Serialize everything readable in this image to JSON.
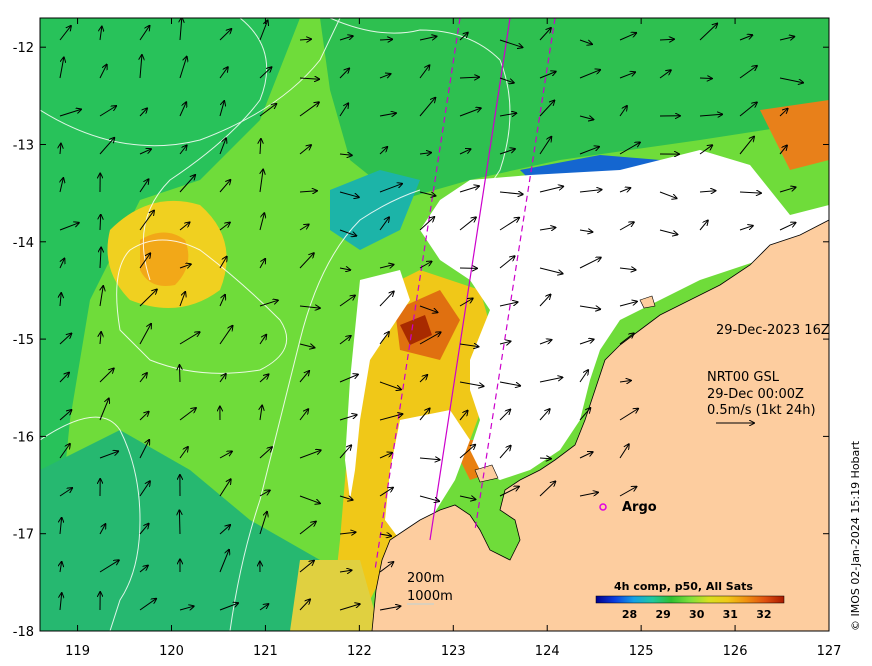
{
  "map": {
    "x_ticks": [
      "119",
      "120",
      "121",
      "122",
      "123",
      "124",
      "125",
      "126",
      "127"
    ],
    "y_ticks": [
      "-12",
      "-13",
      "-14",
      "-15",
      "-16",
      "-17",
      "-18"
    ],
    "colors": {
      "land": "#fdcd9f",
      "cloud_mask": "#ffffff",
      "sst_cool": "#27c06a",
      "sst_mid": "#6fdc3a",
      "sst_warm": "#f0d020",
      "sst_hot": "#f08a10",
      "sst_hottest": "#a02000",
      "altimeter_track": "#cc00cc",
      "contour": "#ffffff"
    }
  },
  "annotations": {
    "date": "29-Dec-2023 16Z",
    "current_source": "NRT00 GSL",
    "current_time": "29-Dec 00:00Z",
    "current_scale": "0.5m/s (1kt 24h)",
    "argo_label": "Argo",
    "contour_200": "200m",
    "contour_1000": "1000m"
  },
  "colorbar": {
    "title": "4h comp, p50, All Sats",
    "ticks": [
      "28",
      "29",
      "30",
      "31",
      "32"
    ],
    "colors": [
      "#00008c",
      "#0a3ce0",
      "#14a0e6",
      "#20c8a0",
      "#30c030",
      "#7ee03c",
      "#d8e020",
      "#f0c818",
      "#f09010",
      "#e05010",
      "#a81a00"
    ]
  },
  "credit": "© IMOS 02-Jan-2024 15:19 Hobart"
}
